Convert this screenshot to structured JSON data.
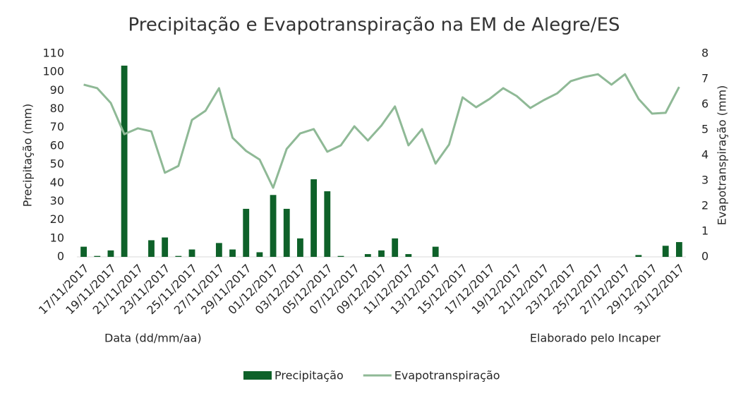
{
  "chart_data": {
    "type": "bar-line",
    "title": "Precipitação e Evapotranspiração na EM de Alegre/ES",
    "y_label": "Precipitação (mm)",
    "y2_label": "Evapotranspiração (mm)",
    "annotations": [
      "Data (dd/mm/aa)",
      "Elaborado pelo Incaper"
    ],
    "categories": [
      "17/11/2017",
      null,
      "19/11/2017",
      null,
      "21/11/2017",
      null,
      "23/11/2017",
      null,
      "25/11/2017",
      null,
      "27/11/2017",
      null,
      "29/11/2017",
      null,
      "01/12/2017",
      null,
      "03/12/2017",
      null,
      "05/12/2017",
      null,
      "07/12/2017",
      null,
      "09/12/2017",
      null,
      "11/12/2017",
      null,
      "13/12/2017",
      null,
      "15/12/2017",
      null,
      "17/12/2017",
      null,
      "19/12/2017",
      null,
      "21/12/2017",
      null,
      "23/12/2017",
      null,
      "25/12/2017",
      null,
      "27/12/2017",
      null,
      "29/12/2017",
      null,
      "31/12/2017"
    ],
    "series": [
      {
        "name": "Precipitação",
        "type": "bar",
        "color": "#0e6129",
        "values": [
          5.5,
          0.5,
          3.5,
          103.5,
          0,
          9,
          10.5,
          0.5,
          4,
          0,
          7.5,
          4,
          26,
          2.5,
          33.5,
          26,
          10,
          42,
          35.5,
          0.5,
          0,
          1.5,
          3.5,
          10,
          1.5,
          0,
          5.5,
          0,
          0,
          0,
          0,
          0,
          0,
          0,
          0,
          0,
          0,
          0,
          0,
          0,
          0,
          1,
          0,
          6,
          8
        ]
      },
      {
        "name": "Evapotranspiração",
        "type": "line",
        "axis": "y2",
        "color": "#8fb996",
        "values": [
          6.78,
          6.64,
          6.06,
          4.83,
          5.06,
          4.94,
          3.31,
          3.58,
          5.39,
          5.75,
          6.64,
          4.69,
          4.17,
          3.83,
          2.72,
          4.25,
          4.86,
          5.03,
          4.14,
          4.39,
          5.14,
          4.58,
          5.17,
          5.92,
          4.39,
          5.03,
          3.67,
          4.42,
          6.28,
          5.89,
          6.22,
          6.64,
          6.33,
          5.86,
          6.17,
          6.44,
          6.92,
          7.08,
          7.19,
          6.78,
          7.19,
          6.22,
          5.64,
          5.67,
          6.69
        ]
      }
    ],
    "ylim": [
      0,
      110
    ],
    "yticks": [
      0,
      10,
      20,
      30,
      40,
      50,
      60,
      70,
      80,
      90,
      100,
      110
    ],
    "y2lim": [
      0,
      8
    ],
    "y2ticks": [
      0,
      1,
      2,
      3,
      4,
      5,
      6,
      7,
      8
    ],
    "legend": "bottom"
  }
}
